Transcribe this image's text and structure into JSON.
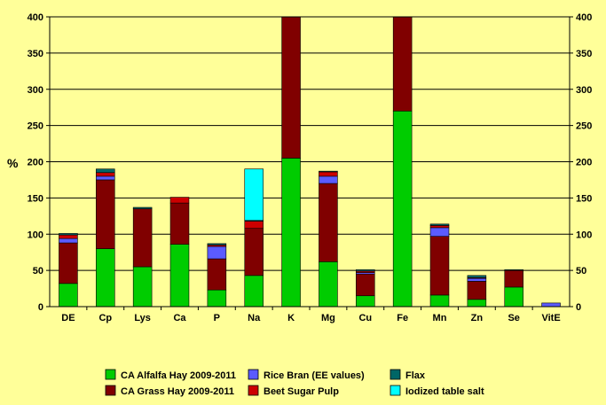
{
  "chart_data": {
    "type": "bar",
    "stacked": true,
    "title": "",
    "xlabel": "",
    "ylabel": "%",
    "ylim": [
      0,
      400
    ],
    "yticks": [
      0,
      50,
      100,
      150,
      200,
      250,
      300,
      350,
      400
    ],
    "secondary_y_axis": true,
    "grid": true,
    "legend_position": "bottom",
    "categories": [
      "DE",
      "Cp",
      "Lys",
      "Ca",
      "P",
      "Na",
      "K",
      "Mg",
      "Cu",
      "Fe",
      "Mn",
      "Zn",
      "Se",
      "VitE"
    ],
    "series": [
      {
        "name": "CA Alfalfa Hay 2009-2011",
        "color": "#00CC00",
        "values": [
          32,
          80,
          55,
          86,
          23,
          43,
          205,
          62,
          15,
          270,
          16,
          10,
          27,
          0
        ]
      },
      {
        "name": "CA Grass Hay 2009-2011",
        "color": "#800000",
        "values": [
          56,
          95,
          80,
          57,
          43,
          65,
          195,
          108,
          30,
          130,
          81,
          25,
          23,
          0
        ]
      },
      {
        "name": "Rice Bran (EE values)",
        "color": "#5B5BFF",
        "values": [
          6,
          5,
          0,
          0,
          17,
          0,
          0,
          10,
          2,
          0,
          12,
          4,
          0,
          5
        ]
      },
      {
        "name": "Beet Sugar Pulp",
        "color": "#CC0000",
        "values": [
          5,
          5,
          0,
          8,
          2,
          10,
          0,
          6,
          2,
          0,
          3,
          1,
          0,
          0
        ]
      },
      {
        "name": "Flax",
        "color": "#006666",
        "values": [
          2,
          5,
          2,
          0,
          2,
          1,
          0,
          1,
          2,
          0,
          2,
          3,
          1,
          0
        ]
      },
      {
        "name": "Iodized table salt",
        "color": "#00FFFF",
        "values": [
          0,
          0,
          0,
          0,
          0,
          71,
          0,
          0,
          0,
          0,
          0,
          0,
          0,
          0
        ]
      }
    ],
    "legend": [
      {
        "label": "CA Alfalfa Hay 2009-2011",
        "color": "#00CC00"
      },
      {
        "label": "Rice Bran (EE values)",
        "color": "#5B5BFF"
      },
      {
        "label": "Flax",
        "color": "#006666"
      },
      {
        "label": "CA Grass Hay 2009-2011",
        "color": "#800000"
      },
      {
        "label": "Beet Sugar Pulp",
        "color": "#CC0000"
      },
      {
        "label": "Iodized table salt",
        "color": "#00FFFF"
      }
    ]
  }
}
